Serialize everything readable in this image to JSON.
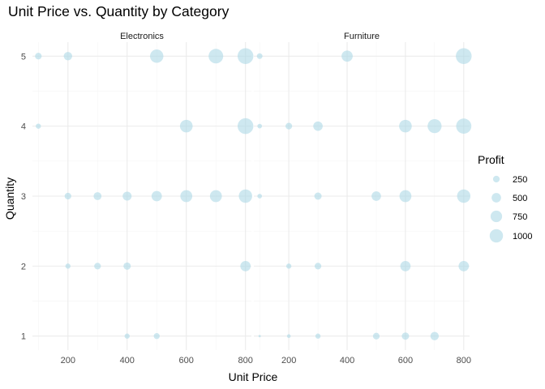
{
  "chart_data": {
    "type": "scatter",
    "title": "Unit Price vs. Quantity by Category",
    "xlabel": "Unit Price",
    "ylabel": "Quantity",
    "xlim": [
      80,
      820
    ],
    "ylim": [
      0.8,
      5.2
    ],
    "x_ticks": [
      200,
      400,
      600,
      800
    ],
    "x_tick_labels": [
      "200",
      "400",
      "600",
      "800"
    ],
    "y_ticks": [
      1,
      2,
      3,
      4,
      5
    ],
    "y_tick_labels": [
      "1",
      "2",
      "3",
      "4",
      "5"
    ],
    "grid": true,
    "point_color": "#add8e6",
    "size_legend": {
      "title": "Profit",
      "values": [
        250,
        500,
        750,
        1000
      ],
      "labels": [
        "250",
        "500",
        "750",
        "1000"
      ],
      "placement": "right"
    },
    "facets": [
      {
        "name": "Electronics",
        "points": [
          {
            "x": 100,
            "y": 5,
            "profit": 250
          },
          {
            "x": 200,
            "y": 5,
            "profit": 400
          },
          {
            "x": 500,
            "y": 5,
            "profit": 1000
          },
          {
            "x": 700,
            "y": 5,
            "profit": 1200
          },
          {
            "x": 800,
            "y": 5,
            "profit": 1400
          },
          {
            "x": 100,
            "y": 4,
            "profit": 150
          },
          {
            "x": 600,
            "y": 4,
            "profit": 900
          },
          {
            "x": 800,
            "y": 4,
            "profit": 1400
          },
          {
            "x": 200,
            "y": 3,
            "profit": 250
          },
          {
            "x": 300,
            "y": 3,
            "profit": 350
          },
          {
            "x": 400,
            "y": 3,
            "profit": 450
          },
          {
            "x": 500,
            "y": 3,
            "profit": 600
          },
          {
            "x": 600,
            "y": 3,
            "profit": 800
          },
          {
            "x": 700,
            "y": 3,
            "profit": 800
          },
          {
            "x": 800,
            "y": 3,
            "profit": 1000
          },
          {
            "x": 200,
            "y": 2,
            "profit": 150
          },
          {
            "x": 300,
            "y": 2,
            "profit": 250
          },
          {
            "x": 400,
            "y": 2,
            "profit": 300
          },
          {
            "x": 800,
            "y": 2,
            "profit": 600
          },
          {
            "x": 400,
            "y": 1,
            "profit": 150
          },
          {
            "x": 500,
            "y": 1,
            "profit": 200
          }
        ]
      },
      {
        "name": "Furniture",
        "points": [
          {
            "x": 100,
            "y": 5,
            "profit": 180
          },
          {
            "x": 400,
            "y": 5,
            "profit": 700
          },
          {
            "x": 800,
            "y": 5,
            "profit": 1400
          },
          {
            "x": 100,
            "y": 4,
            "profit": 120
          },
          {
            "x": 200,
            "y": 4,
            "profit": 250
          },
          {
            "x": 300,
            "y": 4,
            "profit": 500
          },
          {
            "x": 600,
            "y": 4,
            "profit": 900
          },
          {
            "x": 700,
            "y": 4,
            "profit": 1100
          },
          {
            "x": 800,
            "y": 4,
            "profit": 1300
          },
          {
            "x": 100,
            "y": 3,
            "profit": 120
          },
          {
            "x": 300,
            "y": 3,
            "profit": 300
          },
          {
            "x": 500,
            "y": 3,
            "profit": 500
          },
          {
            "x": 600,
            "y": 3,
            "profit": 800
          },
          {
            "x": 800,
            "y": 3,
            "profit": 1000
          },
          {
            "x": 200,
            "y": 2,
            "profit": 150
          },
          {
            "x": 300,
            "y": 2,
            "profit": 250
          },
          {
            "x": 600,
            "y": 2,
            "profit": 600
          },
          {
            "x": 800,
            "y": 2,
            "profit": 600
          },
          {
            "x": 100,
            "y": 1,
            "profit": 30
          },
          {
            "x": 200,
            "y": 1,
            "profit": 80
          },
          {
            "x": 300,
            "y": 1,
            "profit": 150
          },
          {
            "x": 500,
            "y": 1,
            "profit": 250
          },
          {
            "x": 600,
            "y": 1,
            "profit": 300
          },
          {
            "x": 700,
            "y": 1,
            "profit": 400
          }
        ]
      }
    ]
  }
}
